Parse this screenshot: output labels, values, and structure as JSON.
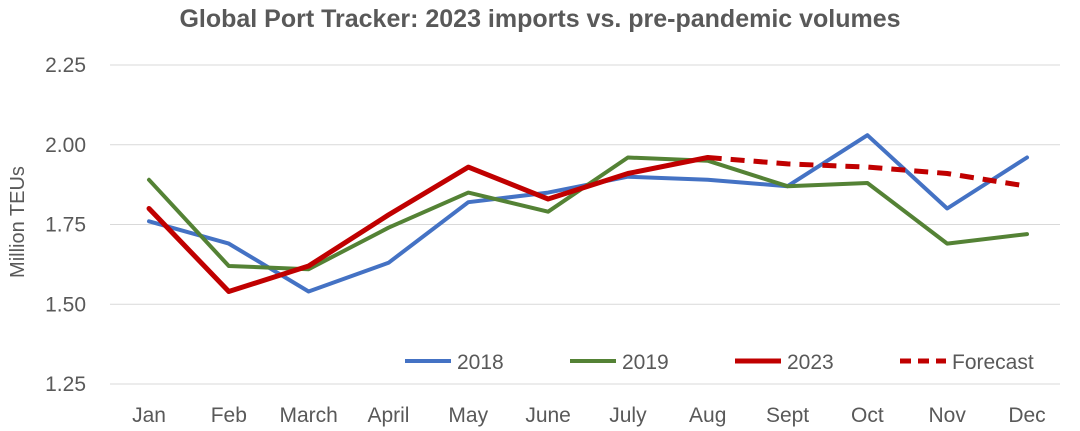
{
  "chart_data": {
    "type": "line",
    "title": "Global Port Tracker: 2023 imports vs. pre-pandemic volumes",
    "xlabel": "",
    "ylabel": "Million TEUs",
    "ylim": [
      1.25,
      2.25
    ],
    "yticks": [
      "1.25",
      "1.50",
      "1.75",
      "2.00",
      "2.25"
    ],
    "categories": [
      "Jan",
      "Feb",
      "March",
      "April",
      "May",
      "June",
      "July",
      "Aug",
      "Sept",
      "Oct",
      "Nov",
      "Dec"
    ],
    "series": [
      {
        "name": "2018",
        "color": "#4472C4",
        "style": "solid",
        "values": [
          1.76,
          1.69,
          1.54,
          1.63,
          1.82,
          1.85,
          1.9,
          1.89,
          1.87,
          2.03,
          1.8,
          1.96
        ]
      },
      {
        "name": "2019",
        "color": "#548235",
        "style": "solid",
        "values": [
          1.89,
          1.62,
          1.61,
          1.74,
          1.85,
          1.79,
          1.96,
          1.95,
          1.87,
          1.88,
          1.69,
          1.72
        ]
      },
      {
        "name": "2023",
        "color": "#C00000",
        "style": "solid",
        "values": [
          1.8,
          1.54,
          1.62,
          1.78,
          1.93,
          1.83,
          1.91,
          1.96,
          null,
          null,
          null,
          null
        ]
      },
      {
        "name": "Forecast",
        "color": "#C00000",
        "style": "dashed",
        "values": [
          null,
          null,
          null,
          null,
          null,
          null,
          null,
          1.96,
          1.94,
          1.93,
          1.91,
          1.87
        ]
      }
    ],
    "grid": true,
    "legend_position": "bottom-right-inside"
  }
}
